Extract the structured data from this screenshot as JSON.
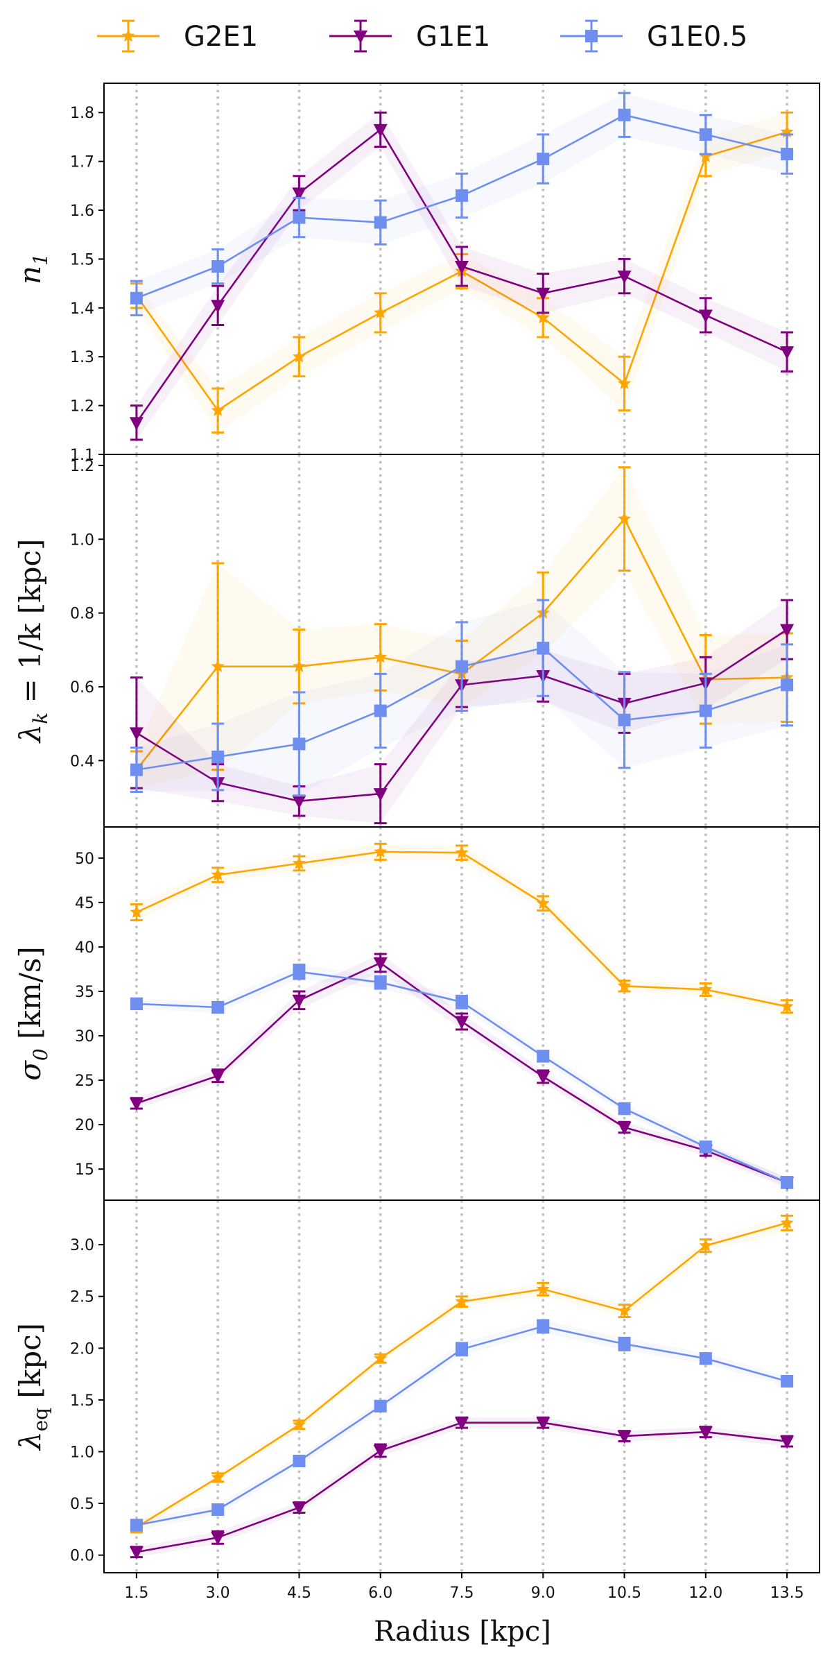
{
  "legend": {
    "items": [
      {
        "name": "G2E1",
        "series_key": "G2E1"
      },
      {
        "name": "G1E1",
        "series_key": "G1E1"
      },
      {
        "name": "G1E0.5",
        "series_key": "G1E05"
      }
    ]
  },
  "colors": {
    "G2E1": "#ffa500",
    "G1E1": "#800080",
    "G1E05": "#6e8ff0",
    "vline": "#c0c0c0"
  },
  "markers": {
    "G2E1": "star",
    "G1E1": "triangle-down",
    "G1E05": "square"
  },
  "chart_data": [
    {
      "type": "line",
      "panel": 1,
      "ylabel_main": "n",
      "ylabel_sub": "1",
      "ylabel_suffix": "",
      "xlabel": "",
      "ylim": [
        1.1,
        1.86
      ],
      "yticks": [
        "1.1",
        "1.2",
        "1.3",
        "1.4",
        "1.5",
        "1.6",
        "1.7",
        "1.8"
      ],
      "x": [
        1.5,
        3.0,
        4.5,
        6.0,
        7.5,
        9.0,
        10.5,
        12.0,
        13.5
      ],
      "series": [
        {
          "key": "G2E1",
          "values": [
            1.425,
            1.19,
            1.3,
            1.39,
            1.475,
            1.38,
            1.245,
            1.71,
            1.76
          ],
          "err": [
            0.025,
            0.045,
            0.04,
            0.04,
            0.035,
            0.04,
            0.055,
            0.04,
            0.04
          ]
        },
        {
          "key": "G1E1",
          "values": [
            1.165,
            1.405,
            1.635,
            1.765,
            1.485,
            1.43,
            1.465,
            1.385,
            1.31
          ],
          "err": [
            0.035,
            0.04,
            0.035,
            0.035,
            0.04,
            0.04,
            0.035,
            0.035,
            0.04
          ]
        },
        {
          "key": "G1E05",
          "values": [
            1.42,
            1.485,
            1.585,
            1.575,
            1.63,
            1.705,
            1.795,
            1.755,
            1.715
          ],
          "err": [
            0.035,
            0.035,
            0.04,
            0.045,
            0.045,
            0.05,
            0.045,
            0.04,
            0.04
          ]
        }
      ]
    },
    {
      "type": "line",
      "panel": 2,
      "ylabel_main": "λ",
      "ylabel_sub": "k",
      "ylabel_suffix": " = 1/k [kpc]",
      "xlabel": "",
      "ylim": [
        0.22,
        1.23
      ],
      "yticks": [
        "0.4",
        "0.6",
        "0.8",
        "1.0",
        "1.2"
      ],
      "x": [
        1.5,
        3.0,
        4.5,
        6.0,
        7.5,
        9.0,
        10.5,
        12.0,
        13.5
      ],
      "series": [
        {
          "key": "G2E1",
          "values": [
            0.375,
            0.655,
            0.655,
            0.68,
            0.635,
            0.8,
            1.055,
            0.62,
            0.625
          ],
          "err": [
            0.05,
            0.28,
            0.1,
            0.09,
            0.09,
            0.11,
            0.14,
            0.12,
            0.12
          ]
        },
        {
          "key": "G1E1",
          "values": [
            0.475,
            0.34,
            0.29,
            0.31,
            0.605,
            0.63,
            0.555,
            0.61,
            0.755
          ],
          "err": [
            0.15,
            0.05,
            0.04,
            0.08,
            0.06,
            0.07,
            0.08,
            0.07,
            0.08
          ]
        },
        {
          "key": "G1E05",
          "values": [
            0.375,
            0.41,
            0.445,
            0.535,
            0.655,
            0.705,
            0.51,
            0.535,
            0.605
          ],
          "err": [
            0.06,
            0.09,
            0.14,
            0.1,
            0.12,
            0.13,
            0.13,
            0.1,
            0.11
          ]
        }
      ]
    },
    {
      "type": "line",
      "panel": 3,
      "ylabel_main": "σ",
      "ylabel_sub": "0",
      "ylabel_suffix": " [km/s]",
      "xlabel": "",
      "ylim": [
        11.5,
        53.5
      ],
      "yticks": [
        "15",
        "20",
        "25",
        "30",
        "35",
        "40",
        "45",
        "50"
      ],
      "x": [
        1.5,
        3.0,
        4.5,
        6.0,
        7.5,
        9.0,
        10.5,
        12.0,
        13.5
      ],
      "series": [
        {
          "key": "G2E1",
          "values": [
            43.9,
            48.1,
            49.4,
            50.7,
            50.6,
            44.9,
            35.6,
            35.2,
            33.3
          ],
          "err": [
            0.9,
            0.8,
            0.8,
            0.9,
            0.8,
            0.8,
            0.6,
            0.7,
            0.7
          ]
        },
        {
          "key": "G1E1",
          "values": [
            22.4,
            25.5,
            34.0,
            38.2,
            31.6,
            25.4,
            19.7,
            17.1,
            13.5
          ],
          "err": [
            0.6,
            0.7,
            1.0,
            1.0,
            0.9,
            0.7,
            0.6,
            0.6,
            0.6
          ]
        },
        {
          "key": "G1E05",
          "values": [
            33.6,
            33.2,
            37.2,
            36.0,
            33.8,
            27.7,
            21.8,
            17.5,
            13.5
          ],
          "err": [
            0.6,
            0.6,
            0.8,
            0.7,
            0.7,
            0.6,
            0.6,
            0.6,
            0.5
          ]
        }
      ]
    },
    {
      "type": "line",
      "panel": 4,
      "ylabel_main": "λ",
      "ylabel_sub": "eq",
      "ylabel_suffix": " [kpc]",
      "xlabel": "Radius [kpc]",
      "ylim": [
        -0.17,
        3.43
      ],
      "yticks": [
        "0.0",
        "0.5",
        "1.0",
        "1.5",
        "2.0",
        "2.5",
        "3.0"
      ],
      "x": [
        1.5,
        3.0,
        4.5,
        6.0,
        7.5,
        9.0,
        10.5,
        12.0,
        13.5
      ],
      "xticks": [
        "1.5",
        "3.0",
        "4.5",
        "6.0",
        "7.5",
        "9.0",
        "10.5",
        "12.0",
        "13.5"
      ],
      "series": [
        {
          "key": "G2E1",
          "values": [
            0.27,
            0.75,
            1.26,
            1.9,
            2.45,
            2.57,
            2.36,
            2.99,
            3.21
          ],
          "err": [
            0.05,
            0.04,
            0.04,
            0.04,
            0.05,
            0.06,
            0.06,
            0.06,
            0.07
          ]
        },
        {
          "key": "G1E1",
          "values": [
            0.03,
            0.17,
            0.46,
            1.01,
            1.28,
            1.28,
            1.15,
            1.19,
            1.1
          ],
          "err": [
            0.05,
            0.06,
            0.05,
            0.06,
            0.05,
            0.05,
            0.05,
            0.05,
            0.05
          ]
        },
        {
          "key": "G1E05",
          "values": [
            0.29,
            0.44,
            0.91,
            1.44,
            1.99,
            2.21,
            2.04,
            1.9,
            1.68
          ],
          "err": [
            0.05,
            0.05,
            0.05,
            0.05,
            0.06,
            0.06,
            0.06,
            0.05,
            0.05
          ]
        }
      ]
    }
  ]
}
